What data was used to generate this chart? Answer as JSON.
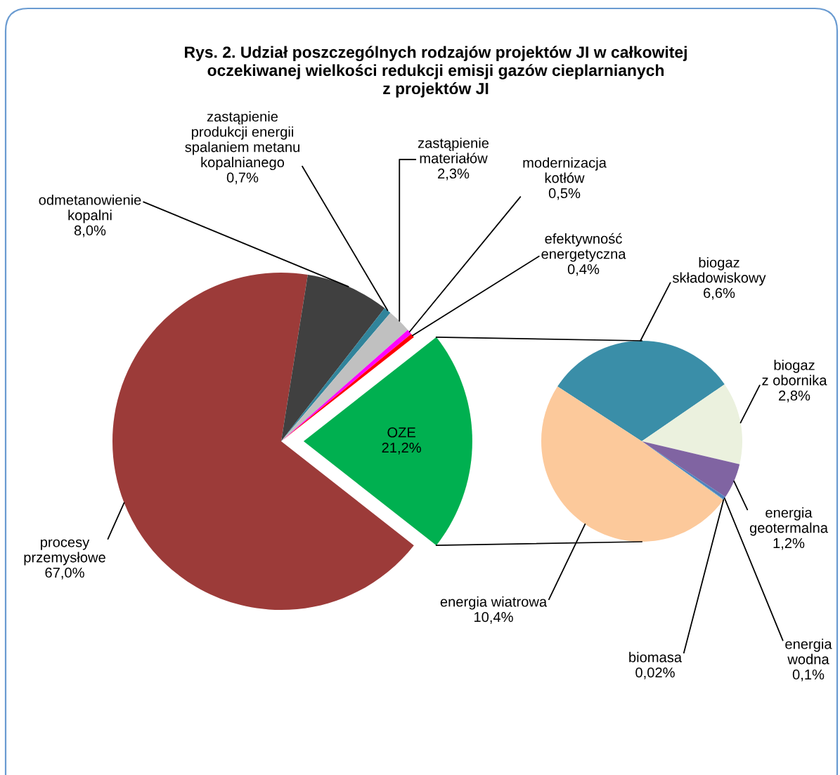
{
  "chart_data": [
    {
      "type": "pie",
      "title": "Rys. 2. Udział poszczególnych rodzajów projektów JI w całkowitej\noczekiwanej wielkości redukcji emisji gazów cieplarnianych\nz projektów JI",
      "categories": [
        "procesy\nprzemysłowe",
        "odmetanowienie\nkopalni",
        "zastąpienie\nprodukcji energii\nspalaniem metanu\nkopalnianego",
        "zastąpienie\nmateriałów",
        "modernizacja\nkotłów",
        "efektywność\nenergetyczna",
        "OZE"
      ],
      "values": [
        67.0,
        8.0,
        0.7,
        2.3,
        0.5,
        0.4,
        21.2
      ],
      "colors": [
        "#9c3b39",
        "#404040",
        "#31849b",
        "#c0c0c0",
        "#ff00ff",
        "#ff0000",
        "#00b050"
      ],
      "value_labels": [
        "67,0%",
        "8,0%",
        "0,7%",
        "2,3%",
        "0,5%",
        "0,4%",
        "21,2%"
      ]
    },
    {
      "type": "pie",
      "categories": [
        "biogaz\nskładowiskowy",
        "biogaz\nz obornika",
        "energia\ngeotermalna",
        "energia\nwodna",
        "biomasa",
        "energia wiatrowa"
      ],
      "values": [
        6.6,
        2.8,
        1.2,
        0.1,
        0.02,
        10.4
      ],
      "colors": [
        "#3a8ea8",
        "#ebf1de",
        "#8064a2",
        "#4f81bd",
        "#4bacc6",
        "#fcc99b"
      ],
      "value_labels": [
        "6,6%",
        "2,8%",
        "1,2%",
        "0,1%",
        "0,02%",
        "10,4%"
      ]
    }
  ]
}
